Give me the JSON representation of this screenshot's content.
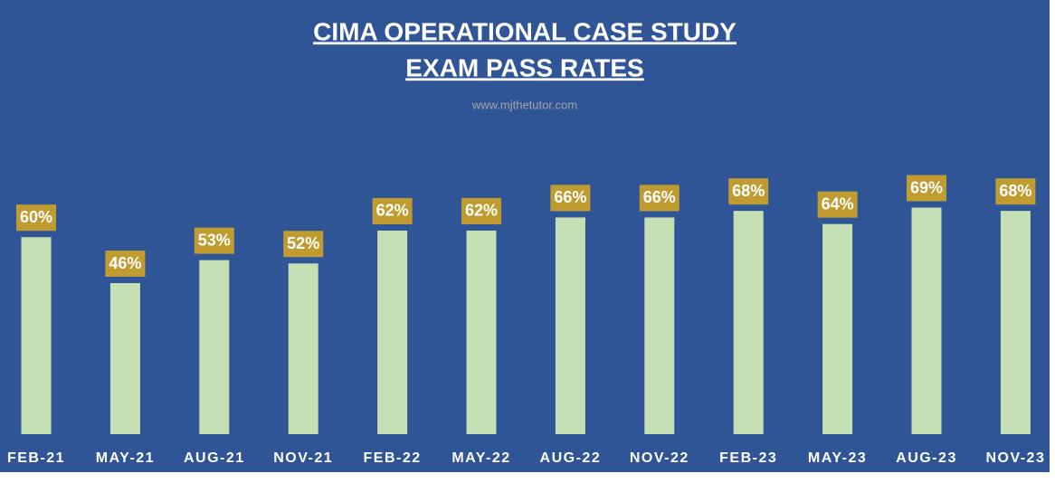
{
  "chart_data": {
    "type": "bar",
    "title": [
      "CIMA OPERATIONAL CASE STUDY",
      "EXAM PASS RATES"
    ],
    "subtitle": "www.mjthetutor.com",
    "categories": [
      "FEB-21",
      "MAY-21",
      "AUG-21",
      "NOV-21",
      "FEB-22",
      "MAY-22",
      "AUG-22",
      "NOV-22",
      "FEB-23",
      "MAY-23",
      "AUG-23",
      "NOV-23"
    ],
    "values": [
      60,
      46,
      53,
      52,
      62,
      62,
      66,
      66,
      68,
      64,
      69,
      68
    ],
    "value_labels": [
      "60%",
      "46%",
      "53%",
      "52%",
      "62%",
      "62%",
      "66%",
      "66%",
      "68%",
      "64%",
      "69%",
      "68%"
    ],
    "color": "#c5e0b4",
    "label_color": "#bf9b30",
    "background": "#2f5597",
    "ylim": [
      0,
      100
    ]
  }
}
